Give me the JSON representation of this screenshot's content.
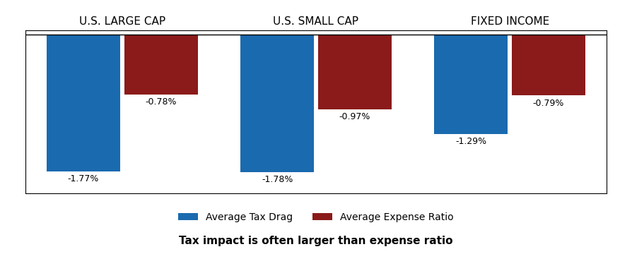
{
  "chart_data": {
    "type": "bar",
    "categories": [
      "U.S. LARGE CAP",
      "U.S. SMALL CAP",
      "FIXED INCOME"
    ],
    "series": [
      {
        "name": "Average Tax Drag",
        "color": "#1A6AAF",
        "values": [
          -1.77,
          -1.78,
          -1.29
        ],
        "value_labels": [
          "-1.77%",
          "-1.78%",
          "-1.29%"
        ]
      },
      {
        "name": "Average Expense Ratio",
        "color": "#8B1A1A",
        "values": [
          -0.78,
          -0.97,
          -0.79
        ],
        "value_labels": [
          "-0.78%",
          "-0.97%",
          "-0.79%"
        ]
      }
    ],
    "ylim": [
      -2.05,
      0.05
    ],
    "tick_labels": "x",
    "data_labels": true,
    "legend": "lower center",
    "annotations": [
      "Tax impact is often larger than expense ratio"
    ]
  }
}
